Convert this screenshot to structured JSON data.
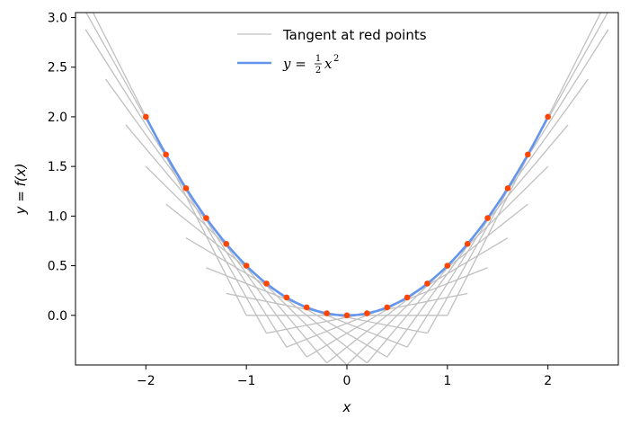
{
  "chart_data": {
    "type": "line",
    "title": "",
    "xlabel": "x",
    "ylabel": "y = f(x)",
    "xlim": [
      -2.7,
      2.7
    ],
    "ylim": [
      -0.5,
      3.05
    ],
    "x_ticks": [
      -2,
      -1,
      0,
      1,
      2
    ],
    "x_tick_labels": [
      "−2",
      "−1",
      "0",
      "1",
      "2"
    ],
    "y_ticks": [
      0.0,
      0.5,
      1.0,
      1.5,
      2.0,
      2.5,
      3.0
    ],
    "y_tick_labels": [
      "0.0",
      "0.5",
      "1.0",
      "1.5",
      "2.0",
      "2.5",
      "3.0"
    ],
    "grid": false,
    "legend_position": "top-center",
    "curve": {
      "name": "y = ½x²",
      "function": "0.5*x^2",
      "x_range": [
        -2.0,
        2.0
      ],
      "color": "#6495ed"
    },
    "red_points": {
      "x": [
        -2.0,
        -1.8,
        -1.6,
        -1.4,
        -1.2,
        -1.0,
        -0.8,
        -0.6,
        -0.4,
        -0.2,
        0.0,
        0.2,
        0.4,
        0.6,
        0.8,
        1.0,
        1.2,
        1.4,
        1.6,
        1.8,
        2.0
      ],
      "y": [
        2.0,
        1.62,
        1.28,
        0.98,
        0.72,
        0.5,
        0.32,
        0.18,
        0.08,
        0.02,
        0.0,
        0.02,
        0.08,
        0.18,
        0.32,
        0.5,
        0.72,
        0.98,
        1.28,
        1.62,
        2.0
      ],
      "color": "#ff4500"
    },
    "tangents": {
      "name": "Tangent at red points",
      "half_width_x": 1.0,
      "color": "#c0c0c0"
    }
  },
  "legend": {
    "tangent_label": "Tangent at red points",
    "curve_label_prefix": "y = ",
    "curve_label_num": "1",
    "curve_label_den": "2",
    "curve_label_var": "x",
    "curve_label_exp": "2"
  },
  "colors": {
    "curve": "#6495ed",
    "points": "#ff4500",
    "tangent": "#c0c0c0"
  }
}
